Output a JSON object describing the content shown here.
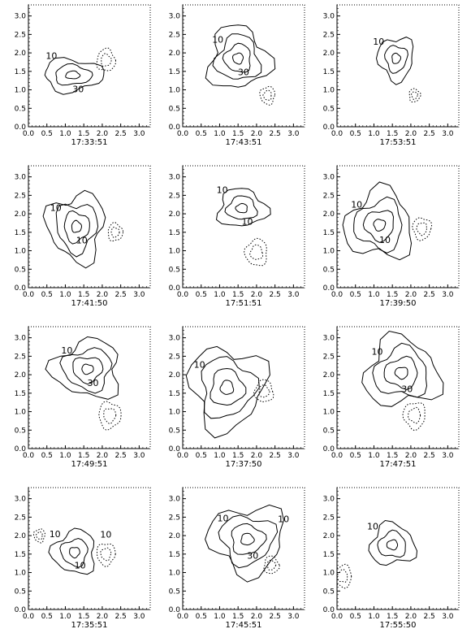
{
  "chart_data": {
    "type": "contour",
    "layout": "4 rows x 3 columns",
    "axis": {
      "range": [
        0.0,
        3.3
      ],
      "ticks": [
        "0.0",
        "0.5",
        "1.0",
        "1.5",
        "2.0",
        "2.5",
        "3.0"
      ],
      "tick_values": [
        0.0,
        0.5,
        1.0,
        1.5,
        2.0,
        2.5,
        3.0
      ]
    },
    "contour_levels_labeled": [
      "10",
      "30"
    ],
    "line_styles": {
      "positive": "solid",
      "negative": "dotted"
    },
    "panels": [
      {
        "time": "17:33:51",
        "peak": [
          1.2,
          1.4
        ],
        "sx": 0.55,
        "sy": 0.3,
        "rings": 3,
        "labels": [
          "10",
          "30"
        ],
        "neg": [
          [
            2.1,
            1.8,
            0.25
          ]
        ]
      },
      {
        "time": "17:41:50",
        "peak": [
          1.3,
          1.65
        ],
        "sx": 0.38,
        "sy": 0.45,
        "rings": 4,
        "labels": [
          "10",
          "10"
        ],
        "neg": [
          [
            2.35,
            1.5,
            0.2
          ]
        ]
      },
      {
        "time": "17:49:51",
        "peak": [
          1.6,
          2.15
        ],
        "sx": 0.45,
        "sy": 0.38,
        "rings": 4,
        "labels": [
          "10",
          "30"
        ],
        "neg": [
          [
            2.2,
            0.9,
            0.3
          ]
        ]
      },
      {
        "time": "17:35:51",
        "peak": [
          1.25,
          1.55
        ],
        "sx": 0.4,
        "sy": 0.4,
        "rings": 3,
        "labels": [
          "10",
          "10",
          "10"
        ],
        "neg": [
          [
            2.1,
            1.5,
            0.25
          ],
          [
            0.3,
            2.0,
            0.15
          ]
        ]
      },
      {
        "time": "17:43:51",
        "peak": [
          1.5,
          1.85
        ],
        "sx": 0.4,
        "sy": 0.42,
        "rings": 4,
        "labels": [
          "10",
          "30"
        ],
        "neg": [
          [
            2.3,
            0.85,
            0.2
          ]
        ]
      },
      {
        "time": "17:51:51",
        "peak": [
          1.6,
          2.15
        ],
        "sx": 0.45,
        "sy": 0.35,
        "rings": 3,
        "labels": [
          "10",
          "10"
        ],
        "neg": [
          [
            2.0,
            0.95,
            0.3
          ]
        ]
      },
      {
        "time": "17:37:50",
        "peak": [
          1.2,
          1.65
        ],
        "sx": 0.5,
        "sy": 0.55,
        "rings": 4,
        "labels": [
          "10"
        ],
        "neg": [
          [
            2.2,
            1.55,
            0.25
          ]
        ]
      },
      {
        "time": "17:45:51",
        "peak": [
          1.75,
          1.9
        ],
        "sx": 0.5,
        "sy": 0.45,
        "rings": 4,
        "labels": [
          "10",
          "30",
          "10"
        ],
        "neg": [
          [
            2.4,
            1.2,
            0.2
          ]
        ]
      },
      {
        "time": "17:53:51",
        "peak": [
          1.6,
          1.85
        ],
        "sx": 0.33,
        "sy": 0.4,
        "rings": 3,
        "labels": [
          "10"
        ],
        "neg": [
          [
            2.1,
            0.85,
            0.15
          ]
        ]
      },
      {
        "time": "17:39:50",
        "peak": [
          1.15,
          1.7
        ],
        "sx": 0.45,
        "sy": 0.45,
        "rings": 4,
        "labels": [
          "10",
          "10"
        ],
        "neg": [
          [
            2.3,
            1.6,
            0.25
          ]
        ]
      },
      {
        "time": "17:47:51",
        "peak": [
          1.75,
          2.05
        ],
        "sx": 0.5,
        "sy": 0.45,
        "rings": 4,
        "labels": [
          "10",
          "30"
        ],
        "neg": [
          [
            2.1,
            0.9,
            0.3
          ]
        ]
      },
      {
        "time": "17:55:50",
        "peak": [
          1.5,
          1.75
        ],
        "sx": 0.42,
        "sy": 0.38,
        "rings": 3,
        "labels": [
          "10"
        ],
        "neg": [
          [
            0.15,
            0.9,
            0.25
          ]
        ]
      }
    ]
  }
}
